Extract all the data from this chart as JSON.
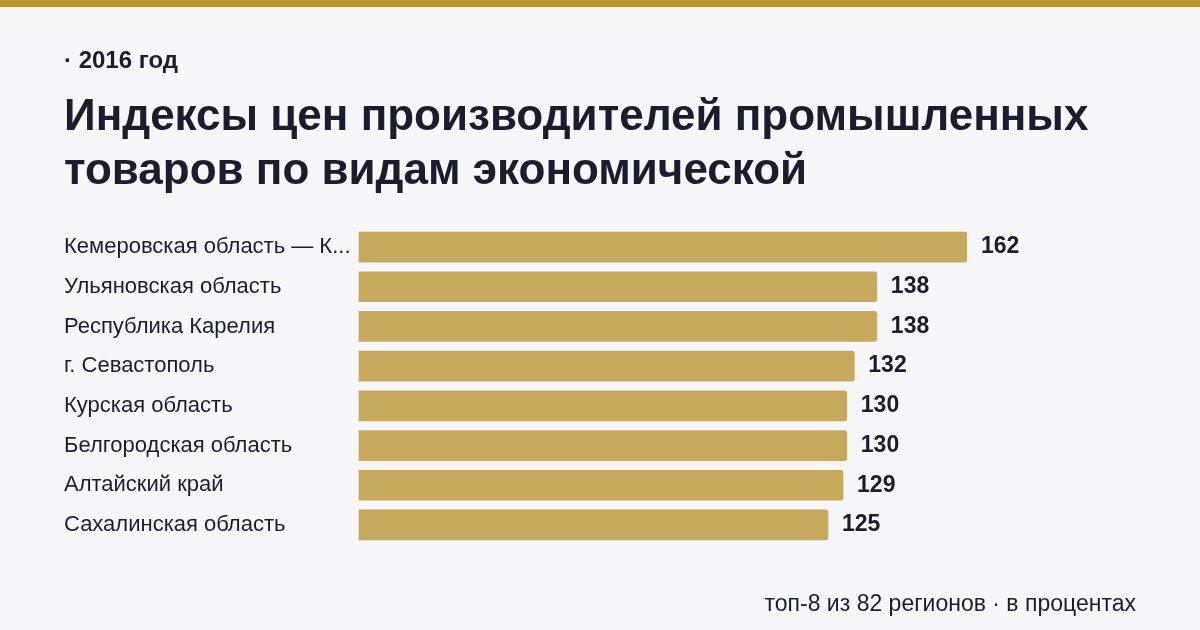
{
  "chart_data": {
    "type": "bar",
    "orientation": "horizontal",
    "subtitle": "· 2016 год",
    "title": "Индексы цен производителей промышленных товаров по видам экономической",
    "categories": [
      "Кемеровская область — К...",
      "Ульяновская область",
      "Республика Карелия",
      "г. Севастополь",
      "Курская область",
      "Белгородская область",
      "Алтайский край",
      "Сахалинская область"
    ],
    "values": [
      162,
      138,
      138,
      132,
      130,
      130,
      129,
      125
    ],
    "color": "#c6a95c",
    "data_labels": true,
    "legend": false,
    "annotations": [
      "топ-8 из 82 регионов · в процентах"
    ]
  }
}
